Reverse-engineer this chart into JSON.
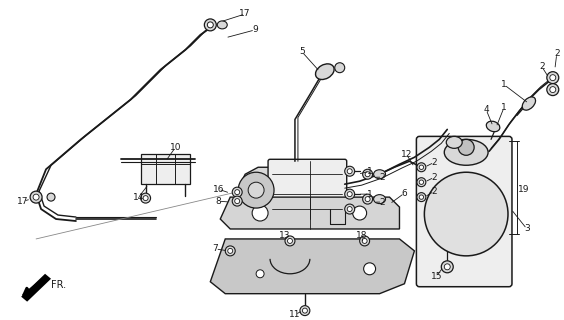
{
  "bg_color": "#ffffff",
  "line_color": "#1a1a1a",
  "gray_fill": "#d8d8d8",
  "light_fill": "#eeeeee",
  "fig_w": 5.64,
  "fig_h": 3.2,
  "dpi": 100
}
